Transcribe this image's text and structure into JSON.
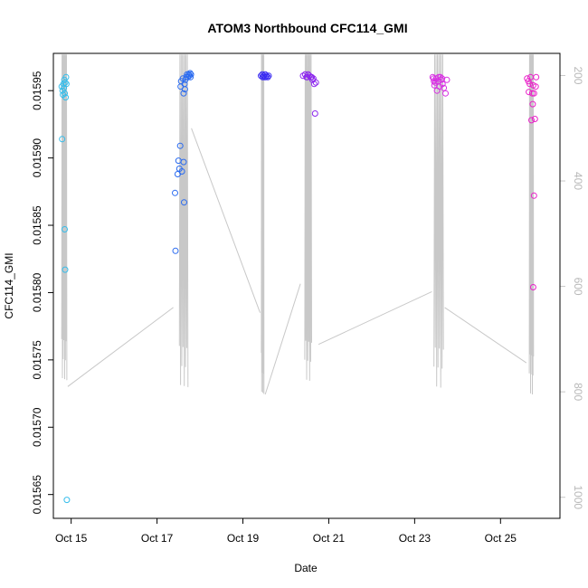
{
  "chart_data": {
    "type": "scatter",
    "title": "ATOM3 Northbound CFC114_GMI",
    "xlabel": "Date",
    "ylabel": "CFC114_GMI",
    "x_ticks": [
      "Oct 15",
      "Oct 17",
      "Oct 19",
      "Oct 21",
      "Oct 23",
      "Oct 25"
    ],
    "x_tick_days": [
      15,
      17,
      19,
      21,
      23,
      25
    ],
    "xlim": [
      14.67,
      26.3
    ],
    "ylim": [
      0.015635,
      0.015975
    ],
    "y_ticks": [
      0.01565,
      0.0157,
      0.01575,
      0.0158,
      0.01585,
      0.0159,
      0.01595
    ],
    "y_tick_labels": [
      "0.01565",
      "0.01570",
      "0.01575",
      "0.01580",
      "0.01585",
      "0.01590",
      "0.01595"
    ],
    "y2_ticks": [
      200,
      400,
      600,
      800,
      1000
    ],
    "y2_tick_labels": [
      "200",
      "400",
      "600",
      "800",
      "1000"
    ],
    "y2lim": [
      1040,
      158
    ],
    "grid": false,
    "series": [
      {
        "kind": "points",
        "color": "#35BDEB",
        "points": [
          [
            14.8,
            0.01595
          ],
          [
            14.82,
            0.015955
          ],
          [
            14.84,
            0.015958
          ],
          [
            14.86,
            0.015956
          ],
          [
            14.88,
            0.01596
          ],
          [
            14.78,
            0.015953
          ],
          [
            14.83,
            0.015952
          ],
          [
            14.85,
            0.015948
          ],
          [
            14.87,
            0.015945
          ],
          [
            14.81,
            0.015947
          ],
          [
            14.79,
            0.015914
          ],
          [
            14.85,
            0.015847
          ],
          [
            14.86,
            0.015817
          ],
          [
            14.9,
            0.015646
          ],
          [
            14.89,
            0.015955
          ]
        ]
      },
      {
        "kind": "points",
        "color": "#2A6BF0",
        "points": [
          [
            17.42,
            0.015874
          ],
          [
            17.43,
            0.015831
          ],
          [
            17.48,
            0.015888
          ],
          [
            17.5,
            0.015898
          ],
          [
            17.52,
            0.015892
          ],
          [
            17.54,
            0.015909
          ],
          [
            17.58,
            0.01589
          ],
          [
            17.62,
            0.015897
          ],
          [
            17.63,
            0.015867
          ],
          [
            17.55,
            0.015953
          ],
          [
            17.56,
            0.015957
          ],
          [
            17.6,
            0.015959
          ],
          [
            17.64,
            0.015955
          ],
          [
            17.66,
            0.015958
          ],
          [
            17.68,
            0.01596
          ],
          [
            17.7,
            0.015962
          ],
          [
            17.72,
            0.01596
          ],
          [
            17.75,
            0.015961
          ],
          [
            17.77,
            0.015963
          ],
          [
            17.79,
            0.015962
          ],
          [
            17.62,
            0.015948
          ],
          [
            17.65,
            0.015951
          ],
          [
            17.74,
            0.015962
          ],
          [
            17.78,
            0.01596
          ]
        ]
      },
      {
        "kind": "points",
        "color": "#3A2BF2",
        "points": [
          [
            19.42,
            0.015961
          ],
          [
            19.45,
            0.015962
          ],
          [
            19.48,
            0.015961
          ],
          [
            19.5,
            0.01596
          ],
          [
            19.52,
            0.015962
          ],
          [
            19.55,
            0.015961
          ],
          [
            19.58,
            0.01596
          ],
          [
            19.6,
            0.015961
          ],
          [
            19.46,
            0.01596
          ],
          [
            19.53,
            0.01596
          ]
        ]
      },
      {
        "kind": "points",
        "color": "#8D28EE",
        "points": [
          [
            20.4,
            0.015961
          ],
          [
            20.45,
            0.015962
          ],
          [
            20.5,
            0.01596
          ],
          [
            20.55,
            0.015961
          ],
          [
            20.58,
            0.01596
          ],
          [
            20.62,
            0.015958
          ],
          [
            20.66,
            0.015955
          ],
          [
            20.68,
            0.015933
          ],
          [
            20.7,
            0.015956
          ],
          [
            20.48,
            0.01596
          ],
          [
            20.52,
            0.015962
          ],
          [
            20.6,
            0.01596
          ],
          [
            20.64,
            0.015959
          ]
        ]
      },
      {
        "kind": "points",
        "color": "#D82FE3",
        "points": [
          [
            23.42,
            0.01596
          ],
          [
            23.44,
            0.015959
          ],
          [
            23.46,
            0.015954
          ],
          [
            23.48,
            0.015956
          ],
          [
            23.5,
            0.015959
          ],
          [
            23.52,
            0.01595
          ],
          [
            23.55,
            0.015957
          ],
          [
            23.58,
            0.015953
          ],
          [
            23.6,
            0.01596
          ],
          [
            23.62,
            0.015958
          ],
          [
            23.65,
            0.015955
          ],
          [
            23.68,
            0.015952
          ],
          [
            23.72,
            0.015948
          ],
          [
            23.75,
            0.015958
          ],
          [
            23.45,
            0.015957
          ],
          [
            23.56,
            0.01596
          ],
          [
            23.64,
            0.015959
          ]
        ]
      },
      {
        "kind": "points",
        "color": "#EA1FC9",
        "points": [
          [
            25.62,
            0.015959
          ],
          [
            25.65,
            0.015957
          ],
          [
            25.68,
            0.015955
          ],
          [
            25.7,
            0.01596
          ],
          [
            25.72,
            0.015928
          ],
          [
            25.74,
            0.015948
          ],
          [
            25.75,
            0.01594
          ],
          [
            25.76,
            0.015954
          ],
          [
            25.78,
            0.015948
          ],
          [
            25.8,
            0.015929
          ],
          [
            25.82,
            0.015953
          ],
          [
            25.83,
            0.01596
          ],
          [
            25.78,
            0.015872
          ],
          [
            25.76,
            0.015804
          ],
          [
            25.66,
            0.015949
          ]
        ]
      }
    ]
  }
}
